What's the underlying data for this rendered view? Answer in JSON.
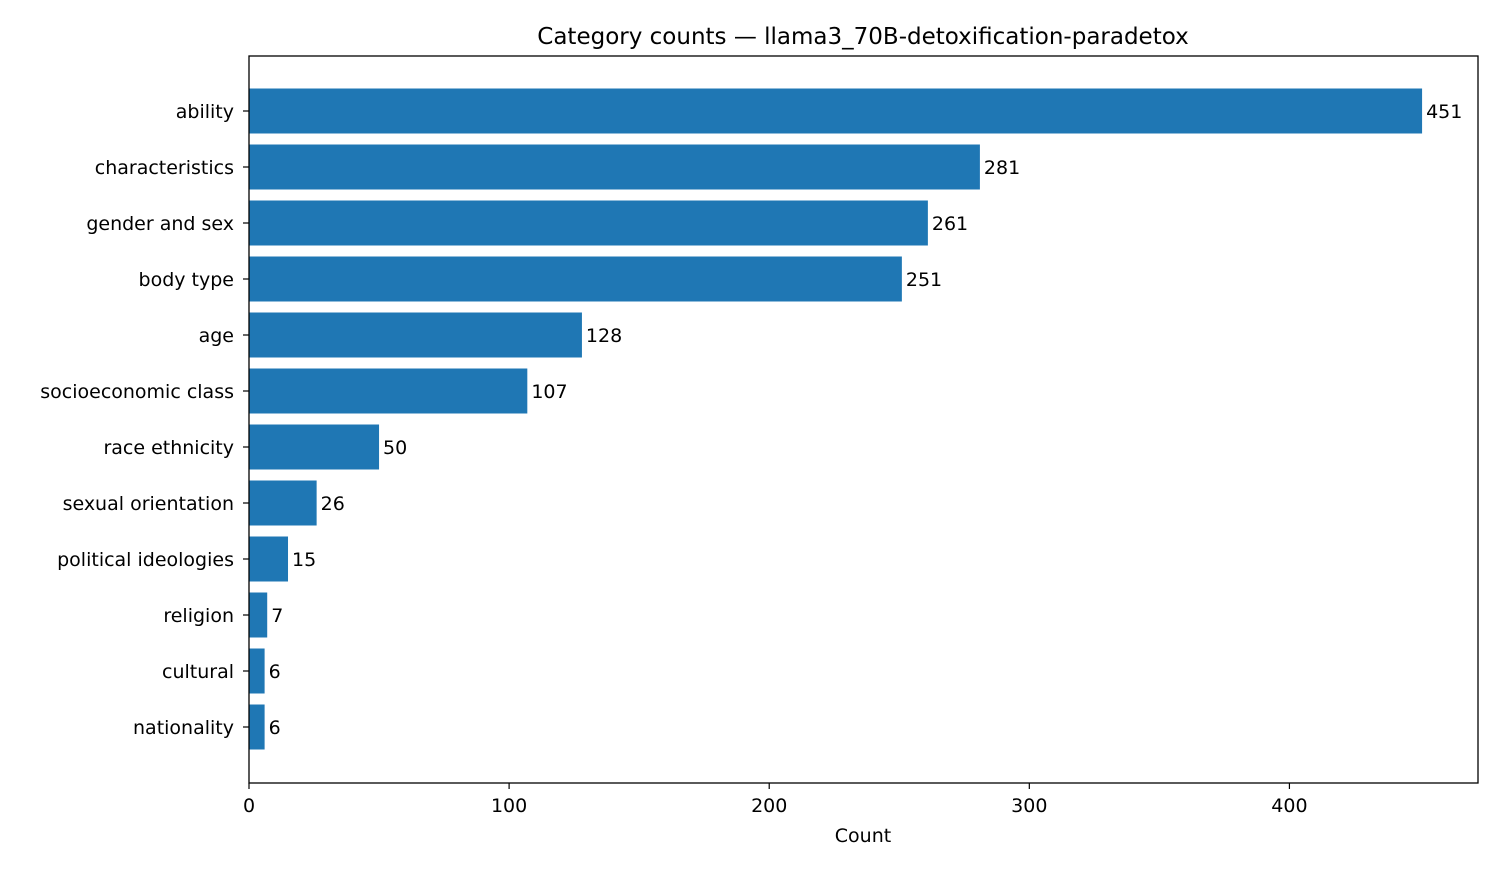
{
  "chart_data": {
    "type": "bar",
    "orientation": "horizontal",
    "title": "Category counts — llama3_70B-detoxification-paradetox",
    "xlabel": "Count",
    "ylabel": "",
    "xlim": [
      0,
      472.5
    ],
    "xticks": [
      0,
      100,
      200,
      300,
      400
    ],
    "grid": false,
    "bar_color": "#1f77b4",
    "categories": [
      "ability",
      "characteristics",
      "gender and sex",
      "body type",
      "age",
      "socioeconomic class",
      "race ethnicity",
      "sexual orientation",
      "political ideologies",
      "religion",
      "cultural",
      "nationality"
    ],
    "values": [
      451,
      281,
      261,
      251,
      128,
      107,
      50,
      26,
      15,
      7,
      6,
      6
    ]
  }
}
